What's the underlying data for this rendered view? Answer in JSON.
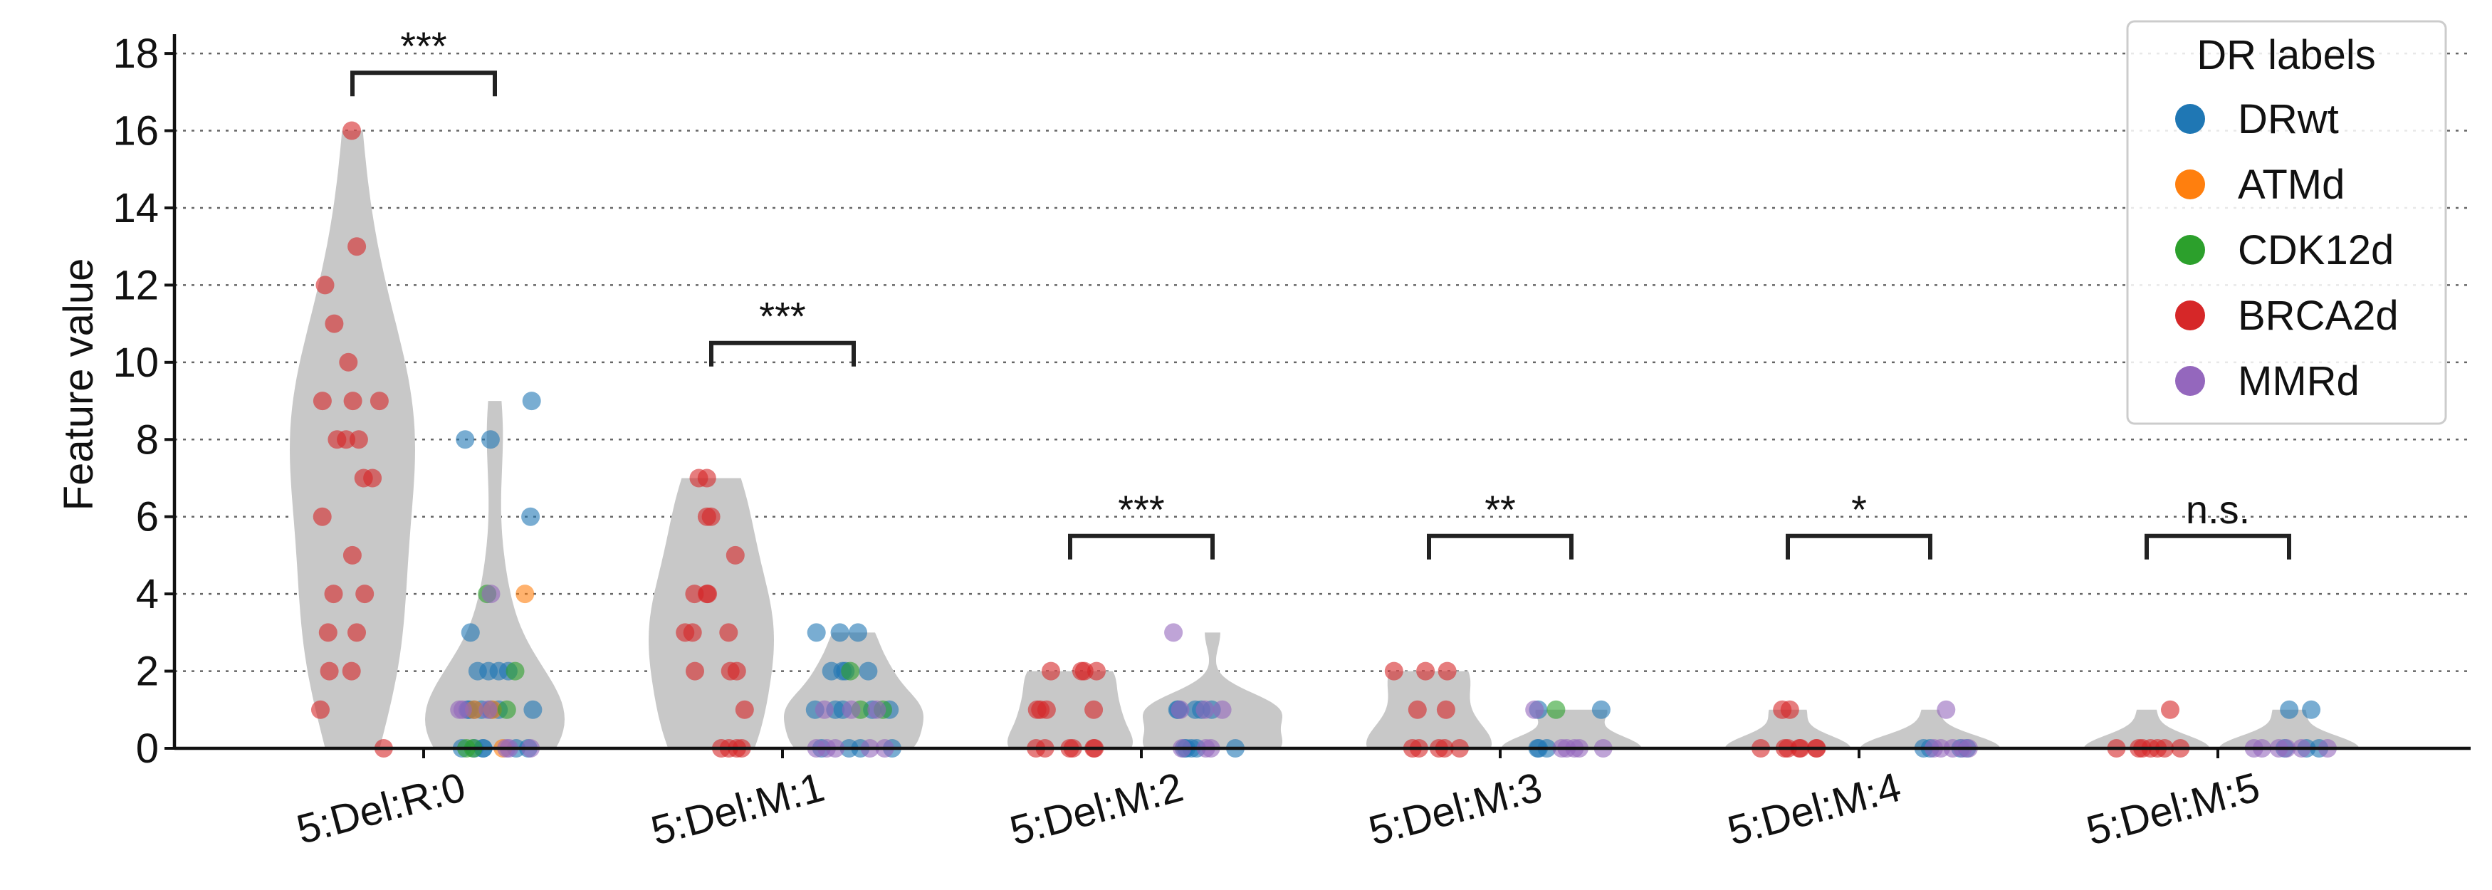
{
  "chart_data": {
    "type": "violin-strip",
    "title": "",
    "xlabel": "",
    "ylabel": "Feature value",
    "ylim": [
      0,
      18.5
    ],
    "yticks": [
      0,
      2,
      4,
      6,
      8,
      10,
      12,
      14,
      16,
      18
    ],
    "grid": "horizontal dotted",
    "legend": {
      "title": "DR labels",
      "placement": "top-right",
      "entries": [
        {
          "name": "DRwt",
          "color": "#1f77b4"
        },
        {
          "name": "ATMd",
          "color": "#ff7f0e"
        },
        {
          "name": "CDK12d",
          "color": "#2ca02c"
        },
        {
          "name": "BRCA2d",
          "color": "#d62728"
        },
        {
          "name": "MMRd",
          "color": "#9467bd"
        }
      ]
    },
    "categories": [
      "5:Del:R:0",
      "5:Del:M:1",
      "5:Del:M:2",
      "5:Del:M:3",
      "5:Del:M:4",
      "5:Del:M:5"
    ],
    "significance": [
      "***",
      "***",
      "***",
      "**",
      "*",
      "n.s."
    ],
    "bracket_y": [
      17.5,
      10.5,
      5.5,
      5.5,
      5.5,
      5.5
    ],
    "groups": [
      {
        "category": "5:Del:R:0",
        "brca2d": [
          16,
          13,
          12,
          11,
          10,
          9,
          9,
          9,
          8,
          8,
          8,
          7,
          7,
          6,
          5,
          4,
          4,
          3,
          3,
          2,
          2,
          1,
          0
        ],
        "others": [
          {
            "label": "DRwt",
            "values": [
              9,
              8,
              8,
              6,
              3,
              2,
              2,
              2,
              2,
              1,
              1,
              1,
              1,
              1,
              1,
              1,
              0,
              0,
              0,
              0,
              0,
              0
            ]
          },
          {
            "label": "ATMd",
            "values": [
              4,
              1,
              1,
              0
            ]
          },
          {
            "label": "CDK12d",
            "values": [
              4,
              2,
              1,
              0,
              0
            ]
          },
          {
            "label": "MMRd",
            "values": [
              4,
              1,
              1,
              1,
              0,
              0,
              0
            ]
          }
        ]
      },
      {
        "category": "5:Del:M:1",
        "brca2d": [
          7,
          7,
          6,
          6,
          5,
          4,
          4,
          4,
          3,
          3,
          3,
          2,
          2,
          2,
          1,
          0,
          0,
          0,
          0
        ],
        "others": [
          {
            "label": "DRwt",
            "values": [
              3,
              3,
              3,
              2,
              2,
              2,
              2,
              1,
              1,
              1,
              1,
              1,
              0,
              0,
              0,
              0
            ]
          },
          {
            "label": "CDK12d",
            "values": [
              2,
              1,
              1
            ]
          },
          {
            "label": "MMRd",
            "values": [
              1,
              1,
              1,
              0,
              0,
              0,
              0,
              0
            ]
          }
        ]
      },
      {
        "category": "5:Del:M:2",
        "brca2d": [
          2,
          2,
          2,
          2,
          1,
          1,
          1,
          1,
          0,
          0,
          0,
          0,
          0,
          0
        ],
        "others": [
          {
            "label": "DRwt",
            "values": [
              1,
              1,
              1,
              1,
              1,
              0,
              0,
              0,
              0,
              0
            ]
          },
          {
            "label": "MMRd",
            "values": [
              3,
              1,
              1,
              1,
              0,
              0,
              0
            ]
          }
        ]
      },
      {
        "category": "5:Del:M:3",
        "brca2d": [
          2,
          2,
          2,
          1,
          1,
          0,
          0,
          0,
          0,
          0
        ],
        "others": [
          {
            "label": "DRwt",
            "values": [
              1,
              1,
              0,
              0,
              0
            ]
          },
          {
            "label": "CDK12d",
            "values": [
              1
            ]
          },
          {
            "label": "MMRd",
            "values": [
              1,
              0,
              0,
              0,
              0,
              0
            ]
          }
        ]
      },
      {
        "category": "5:Del:M:4",
        "brca2d": [
          1,
          1,
          0,
          0,
          0,
          0,
          0,
          0,
          0
        ],
        "others": [
          {
            "label": "DRwt",
            "values": [
              0,
              0,
              0,
              0
            ]
          },
          {
            "label": "MMRd",
            "values": [
              1,
              0,
              0,
              0,
              0,
              0
            ]
          }
        ]
      },
      {
        "category": "5:Del:M:5",
        "brca2d": [
          1,
          0,
          0,
          0,
          0,
          0,
          0,
          0
        ],
        "others": [
          {
            "label": "DRwt",
            "values": [
              1,
              1,
              0,
              0,
              0
            ]
          },
          {
            "label": "MMRd",
            "values": [
              0,
              0,
              0,
              0,
              0,
              0
            ]
          }
        ]
      }
    ]
  }
}
